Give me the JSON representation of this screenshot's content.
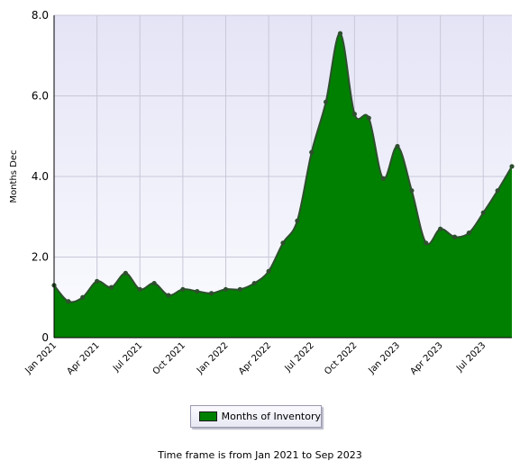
{
  "chart_data": {
    "type": "area",
    "title": "",
    "xlabel": "",
    "ylabel": "Months Dec",
    "ylim": [
      0,
      8
    ],
    "y_ticks": [
      "0",
      "2.0",
      "4.0",
      "6.0",
      "8.0"
    ],
    "x_ticks": [
      "Jan 2021",
      "Apr 2021",
      "Jul 2021",
      "Oct 2021",
      "Jan 2022",
      "Apr 2022",
      "Jul 2022",
      "Oct 2022",
      "Jan 2023",
      "Apr 2023",
      "Jul 2023"
    ],
    "grid": true,
    "legend_position": "bottom-center",
    "x": [
      "Jan 2021",
      "Feb 2021",
      "Mar 2021",
      "Apr 2021",
      "May 2021",
      "Jun 2021",
      "Jul 2021",
      "Aug 2021",
      "Sep 2021",
      "Oct 2021",
      "Nov 2021",
      "Dec 2021",
      "Jan 2022",
      "Feb 2022",
      "Mar 2022",
      "Apr 2022",
      "May 2022",
      "Jun 2022",
      "Jul 2022",
      "Aug 2022",
      "Sep 2022",
      "Oct 2022",
      "Nov 2022",
      "Dec 2022",
      "Jan 2023",
      "Feb 2023",
      "Mar 2023",
      "Apr 2023",
      "May 2023",
      "Jun 2023",
      "Jul 2023",
      "Aug 2023",
      "Sep 2023"
    ],
    "series": [
      {
        "name": "Months of Inventory",
        "color": "#008000",
        "line_color": "#2f4f2f",
        "values": [
          1.3,
          0.9,
          1.0,
          1.4,
          1.25,
          1.6,
          1.2,
          1.35,
          1.05,
          1.2,
          1.15,
          1.1,
          1.2,
          1.2,
          1.35,
          1.65,
          2.35,
          2.9,
          4.6,
          5.85,
          7.55,
          5.55,
          5.45,
          3.95,
          4.75,
          3.65,
          2.35,
          2.7,
          2.5,
          2.6,
          3.1,
          3.65,
          4.25
        ]
      }
    ]
  },
  "legend": {
    "label": "Months of Inventory",
    "swatch_color": "#008000"
  },
  "footer": "Time frame is from Jan 2021 to Sep 2023"
}
